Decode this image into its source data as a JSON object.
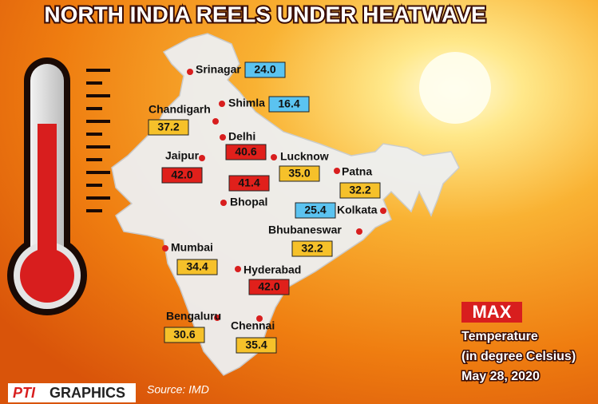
{
  "title": "NORTH INDIA REELS UNDER HEATWAVE",
  "cities": [
    {
      "name": "Srinagar",
      "value": "24.0",
      "color": "#5bc3f0"
    },
    {
      "name": "Shimla",
      "value": "16.4",
      "color": "#5bc3f0"
    },
    {
      "name": "Chandigarh",
      "value": "37.2",
      "color": "#f6c12a"
    },
    {
      "name": "Delhi",
      "value": "40.6",
      "color": "#e0201b"
    },
    {
      "name": "Jaipur",
      "value": "42.0",
      "color": "#e0201b"
    },
    {
      "name": "Bhopal",
      "value": "41.4",
      "color": "#e0201b"
    },
    {
      "name": "Lucknow",
      "value": "35.0",
      "color": "#f6c12a"
    },
    {
      "name": "Patna",
      "value": "32.2",
      "color": "#f6c12a"
    },
    {
      "name": "Kolkata",
      "value": "25.4",
      "color": "#5bc3f0"
    },
    {
      "name": "Bhubaneswar",
      "value": "32.2",
      "color": "#f6c12a"
    },
    {
      "name": "Mumbai",
      "value": "34.4",
      "color": "#f6c12a"
    },
    {
      "name": "Hyderabad",
      "value": "42.0",
      "color": "#e0201b"
    },
    {
      "name": "Bengaluru",
      "value": "30.6",
      "color": "#f6c12a"
    },
    {
      "name": "Chennai",
      "value": "35.4",
      "color": "#f6c12a"
    }
  ],
  "legend": {
    "badge": "MAX",
    "line1": "Temperature",
    "line2": "(in degree Celsius)",
    "date": "May 28, 2020"
  },
  "footer": {
    "brand": "PTI",
    "label": "GRAPHICS",
    "source": "Source: IMD"
  }
}
